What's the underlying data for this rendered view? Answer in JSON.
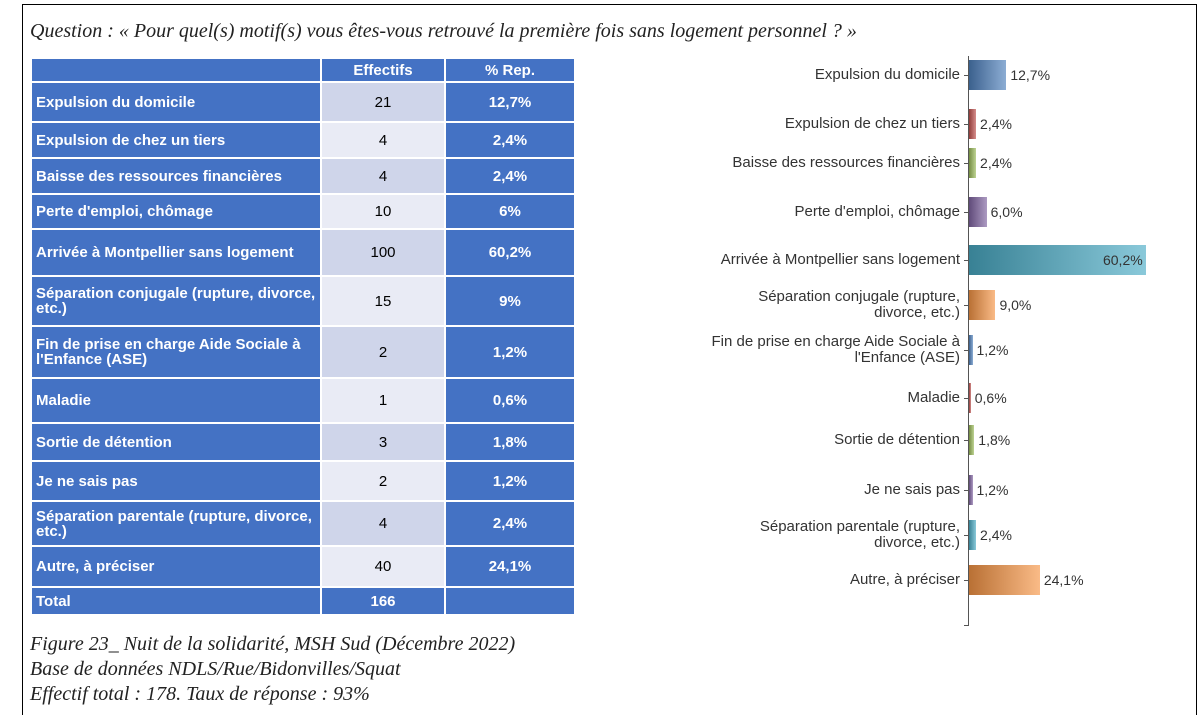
{
  "question": "Question : « Pour quel(s) motif(s) vous êtes-vous retrouvé la première fois sans logement personnel ? »",
  "table": {
    "header": [
      "Effectifs",
      "% Rep."
    ],
    "rows": [
      [
        "Expulsion du domicile",
        21,
        "12,7%"
      ],
      [
        "Expulsion de chez un tiers",
        4,
        "2,4%"
      ],
      [
        "Baisse des ressources financières",
        4,
        "2,4%"
      ],
      [
        "Perte d'emploi, chômage",
        10,
        "6%"
      ],
      [
        "Arrivée à Montpellier sans logement",
        100,
        "60,2%"
      ],
      [
        "Séparation conjugale (rupture, divorce, etc.)",
        15,
        "9%"
      ],
      [
        "Fin de prise en charge Aide Sociale à l'Enfance (ASE)",
        2,
        "1,2%"
      ],
      [
        "Maladie",
        1,
        "0,6%"
      ],
      [
        "Sortie de détention",
        3,
        "1,8%"
      ],
      [
        "Je ne sais pas",
        2,
        "1,2%"
      ],
      [
        "Séparation parentale (rupture, divorce, etc.)",
        4,
        "2,4%"
      ],
      [
        "Autre, à préciser",
        40,
        "24,1%"
      ]
    ],
    "total": [
      "Total",
      166
    ]
  },
  "chart_data": {
    "type": "bar",
    "orientation": "horizontal",
    "categories": [
      "Expulsion du domicile",
      "Expulsion de chez un tiers",
      "Baisse des ressources financières",
      "Perte d'emploi, chômage",
      "Arrivée à Montpellier sans logement",
      "Séparation conjugale (rupture,\ndivorce, etc.)",
      "Fin de prise en charge Aide Sociale à\nl'Enfance (ASE)",
      "Maladie",
      "Sortie de détention",
      "Je ne sais pas",
      "Séparation parentale (rupture,\ndivorce, etc.)",
      "Autre, à préciser"
    ],
    "values": [
      12.7,
      2.4,
      2.4,
      6.0,
      60.2,
      9.0,
      1.2,
      0.6,
      1.8,
      1.2,
      2.4,
      24.1
    ],
    "value_labels": [
      "12,7%",
      "2,4%",
      "2,4%",
      "6,0%",
      "60,2%",
      "9,0%",
      "1,2%",
      "0,6%",
      "1,8%",
      "1,2%",
      "2,4%",
      "24,1%"
    ],
    "colors": [
      "#4f81bd",
      "#c0504d",
      "#9bbb59",
      "#8064a2",
      "#4bacc6",
      "#f79646",
      "#4f81bd",
      "#c0504d",
      "#9bbb59",
      "#8064a2",
      "#4bacc6",
      "#f79646"
    ]
  },
  "caption": [
    "Figure 23_ Nuit de la solidarité, MSH Sud (Décembre 2022)",
    "Base de données NDLS/Rue/Bidonvilles/Squat",
    "Effectif total : 178. Taux de réponse : 93%"
  ]
}
